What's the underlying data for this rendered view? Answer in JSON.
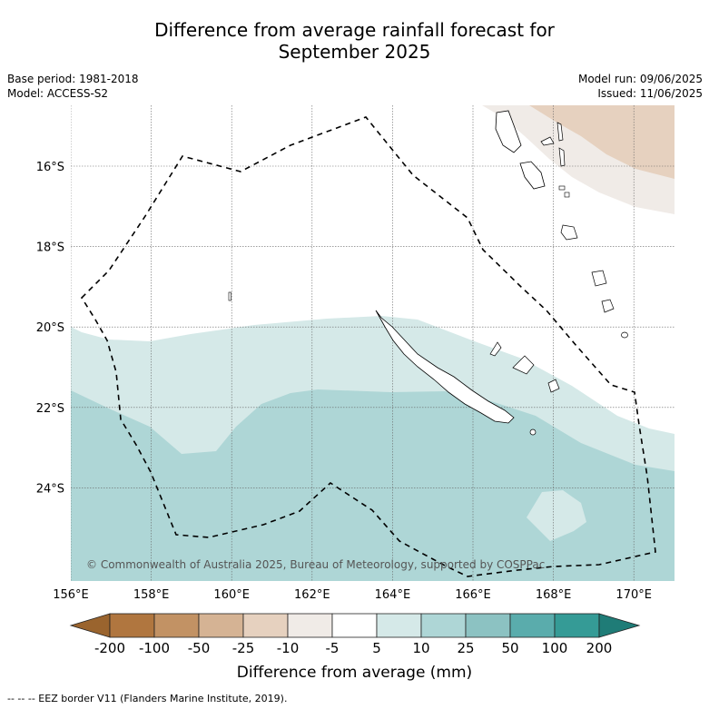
{
  "title": {
    "line1": "Difference from average rainfall forecast for",
    "line2": "September 2025"
  },
  "meta": {
    "base_period": "Base period: 1981-2018",
    "model": "Model: ACCESS-S2",
    "model_run": "Model run: 09/06/2025",
    "issued": "Issued: 11/06/2025"
  },
  "map": {
    "lon_labels": [
      "156°E",
      "158°E",
      "160°E",
      "162°E",
      "164°E",
      "166°E",
      "168°E",
      "170°E"
    ],
    "lat_labels": [
      "16°S",
      "18°S",
      "20°S",
      "22°S",
      "24°S"
    ],
    "copyright": "© Commonwealth of Australia 2025, Bureau of Meteorology, supported by COSPPac"
  },
  "colorbar": {
    "labels": [
      "-200",
      "-100",
      "-50",
      "-25",
      "-10",
      "-5",
      "5",
      "10",
      "25",
      "50",
      "100",
      "200"
    ],
    "colors": [
      "#9a642e",
      "#b0763f",
      "#c29264",
      "#d5b394",
      "#e6d1bf",
      "#f0ebe7",
      "#ffffff",
      "#d5e9e8",
      "#aed6d6",
      "#8cc2c2",
      "#5aacac",
      "#359b96",
      "#1f7c77"
    ],
    "title": "Difference from average (mm)"
  },
  "footnote": "--  --  -- EEZ border V11 (Flanders Marine Institute, 2019)."
}
